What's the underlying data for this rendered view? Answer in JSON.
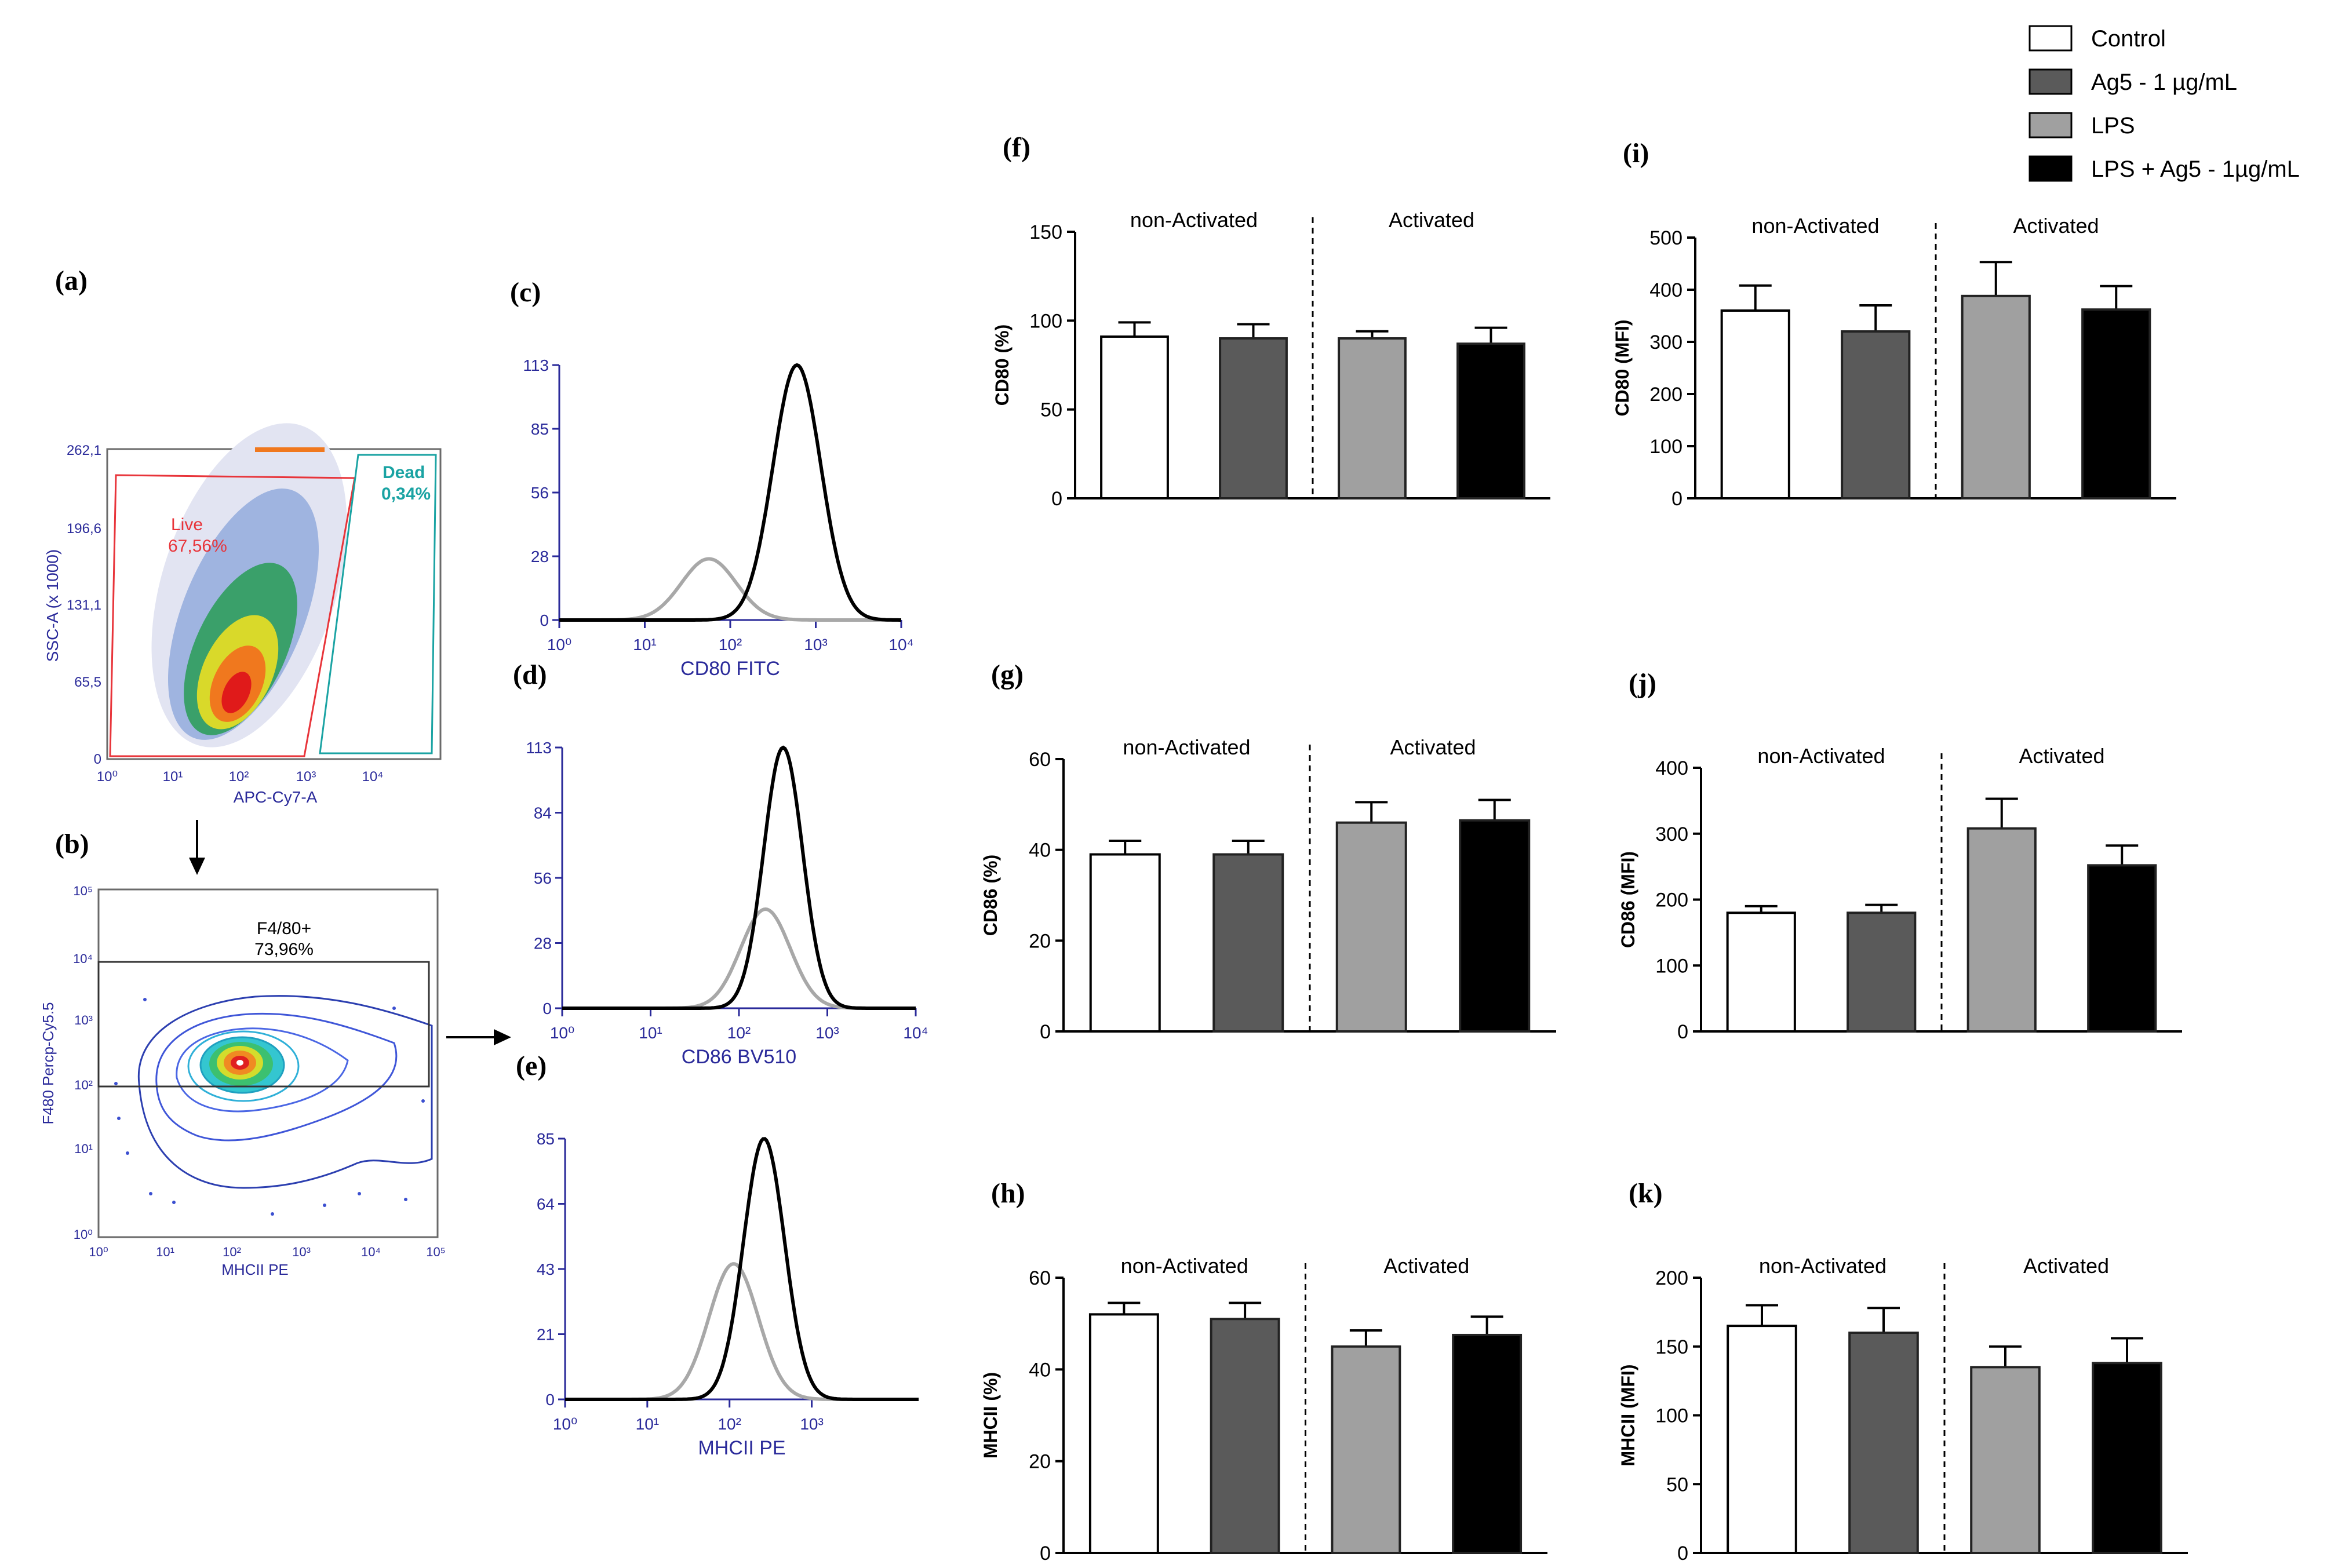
{
  "legend": {
    "items": [
      {
        "label": "Control",
        "color": "#ffffff"
      },
      {
        "label": "Ag5 - 1 µg/mL",
        "color": "#5a5a5a"
      },
      {
        "label": "LPS",
        "color": "#a0a0a0"
      },
      {
        "label": "LPS + Ag5 - 1µg/mL",
        "color": "#000000"
      }
    ]
  },
  "colors": {
    "live_gate": "#e8343a",
    "dead_gate": "#1aa3a3",
    "axis_blue": "#2a2a9a",
    "hist_gray": "#a8a8a8",
    "hist_black": "#000000"
  },
  "panels": {
    "a": {
      "label": "(a)",
      "ylabel": "SSC-A (x 1000)",
      "xlabel": "APC-Cy7-A",
      "yticks": [
        "262,1",
        "196,6",
        "131,1",
        "65,5",
        "0"
      ],
      "xticks": [
        "10⁰",
        "10¹",
        "10²",
        "10³",
        "10⁴"
      ],
      "live_label": "Live",
      "live_pct": "67,56%",
      "dead_label": "Dead",
      "dead_pct": "0,34%"
    },
    "b": {
      "label": "(b)",
      "ylabel": "F480 Percp-Cy5.5",
      "xlabel": "MHCII PE",
      "yticks": [
        "10⁵",
        "10⁴",
        "10³",
        "10²",
        "10¹",
        "10⁰"
      ],
      "xticks": [
        "10⁰",
        "10¹",
        "10²",
        "10³",
        "10⁴",
        "10⁵"
      ],
      "gate_label": "F4/80+",
      "gate_pct": "73,96%"
    },
    "hist": [
      {
        "label": "(c)",
        "xlabel": "CD80 FITC",
        "yticks": [
          "113",
          "85",
          "56",
          "28",
          "0"
        ],
        "xticks": [
          "10⁰",
          "10¹",
          "10²",
          "10³",
          "10⁴"
        ]
      },
      {
        "label": "(d)",
        "xlabel": "CD86 BV510",
        "yticks": [
          "113",
          "84",
          "56",
          "28",
          "0"
        ],
        "xticks": [
          "10⁰",
          "10¹",
          "10²",
          "10³",
          "10⁴"
        ]
      },
      {
        "label": "(e)",
        "xlabel": "MHCII PE",
        "yticks": [
          "85",
          "64",
          "43",
          "21",
          "0"
        ],
        "xticks": [
          "10⁰",
          "10¹",
          "10²",
          "10³"
        ]
      }
    ]
  },
  "chart_data": [
    {
      "panel": "(f)",
      "type": "bar",
      "ylabel": "CD80 (%)",
      "ylim": [
        0,
        150
      ],
      "yticks": [
        0,
        50,
        100,
        150
      ],
      "group_labels": [
        "non-Activated",
        "Activated"
      ],
      "categories": [
        "Control",
        "Ag5 - 1 µg/mL",
        "LPS",
        "LPS + Ag5 - 1µg/mL"
      ],
      "values": [
        91,
        90,
        90,
        87
      ],
      "errors": [
        8,
        8,
        4,
        9
      ]
    },
    {
      "panel": "(i)",
      "type": "bar",
      "ylabel": "CD80 (MFI)",
      "ylim": [
        0,
        500
      ],
      "yticks": [
        0,
        100,
        200,
        300,
        400,
        500
      ],
      "group_labels": [
        "non-Activated",
        "Activated"
      ],
      "categories": [
        "Control",
        "Ag5 - 1 µg/mL",
        "LPS",
        "LPS + Ag5 - 1µg/mL"
      ],
      "values": [
        360,
        320,
        388,
        362
      ],
      "errors": [
        48,
        50,
        65,
        45
      ]
    },
    {
      "panel": "(g)",
      "type": "bar",
      "ylabel": "CD86 (%)",
      "ylim": [
        0,
        60
      ],
      "yticks": [
        0,
        20,
        40,
        60
      ],
      "group_labels": [
        "non-Activated",
        "Activated"
      ],
      "categories": [
        "Control",
        "Ag5 - 1 µg/mL",
        "LPS",
        "LPS + Ag5 - 1µg/mL"
      ],
      "values": [
        39,
        39,
        46,
        46.5
      ],
      "errors": [
        3,
        3,
        4.5,
        4.5
      ]
    },
    {
      "panel": "(j)",
      "type": "bar",
      "ylabel": "CD86 (MFI)",
      "ylim": [
        0,
        400
      ],
      "yticks": [
        0,
        100,
        200,
        300,
        400
      ],
      "group_labels": [
        "non-Activated",
        "Activated"
      ],
      "categories": [
        "Control",
        "Ag5 - 1 µg/mL",
        "LPS",
        "LPS + Ag5 - 1µg/mL"
      ],
      "values": [
        180,
        180,
        308,
        252
      ],
      "errors": [
        10,
        12,
        45,
        30
      ]
    },
    {
      "panel": "(h)",
      "type": "bar",
      "ylabel": "MHCII (%)",
      "ylim": [
        0,
        60
      ],
      "yticks": [
        0,
        20,
        40,
        60
      ],
      "group_labels": [
        "non-Activated",
        "Activated"
      ],
      "categories": [
        "Control",
        "Ag5 - 1 µg/mL",
        "LPS",
        "LPS + Ag5 - 1µg/mL"
      ],
      "values": [
        52,
        51,
        45,
        47.5
      ],
      "errors": [
        2.5,
        3.5,
        3.5,
        4
      ]
    },
    {
      "panel": "(k)",
      "type": "bar",
      "ylabel": "MHCII (MFI)",
      "ylim": [
        0,
        200
      ],
      "yticks": [
        0,
        50,
        100,
        150,
        200
      ],
      "group_labels": [
        "non-Activated",
        "Activated"
      ],
      "categories": [
        "Control",
        "Ag5 - 1 µg/mL",
        "LPS",
        "LPS + Ag5 - 1µg/mL"
      ],
      "values": [
        165,
        160,
        135,
        138
      ],
      "errors": [
        15,
        18,
        15,
        18
      ]
    }
  ]
}
